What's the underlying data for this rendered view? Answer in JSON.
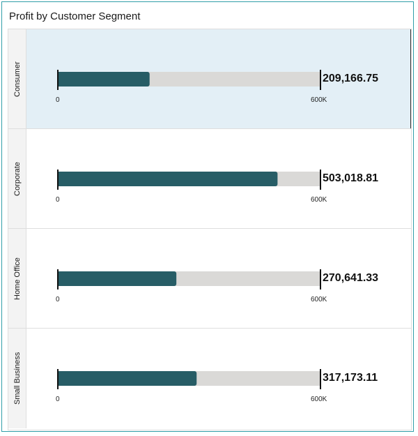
{
  "title": "Profit by Customer Segment",
  "colors": {
    "bar": "#275d66",
    "track": "#dad9d7",
    "selected_bg": "#e3eff6"
  },
  "chart_data": {
    "type": "bar",
    "orientation": "horizontal",
    "title": "Profit by Customer Segment",
    "categories": [
      "Consumer",
      "Corporate",
      "Home Office",
      "Small Business"
    ],
    "values": [
      209166.75,
      503018.81,
      270641.33,
      317173.11
    ],
    "value_labels": [
      "209,166.75",
      "503,018.81",
      "270,641.33",
      "317,173.11"
    ],
    "axis_min": 0,
    "axis_max": 600000,
    "tick_labels": [
      "0",
      "600K"
    ],
    "selected_category": "Consumer"
  }
}
